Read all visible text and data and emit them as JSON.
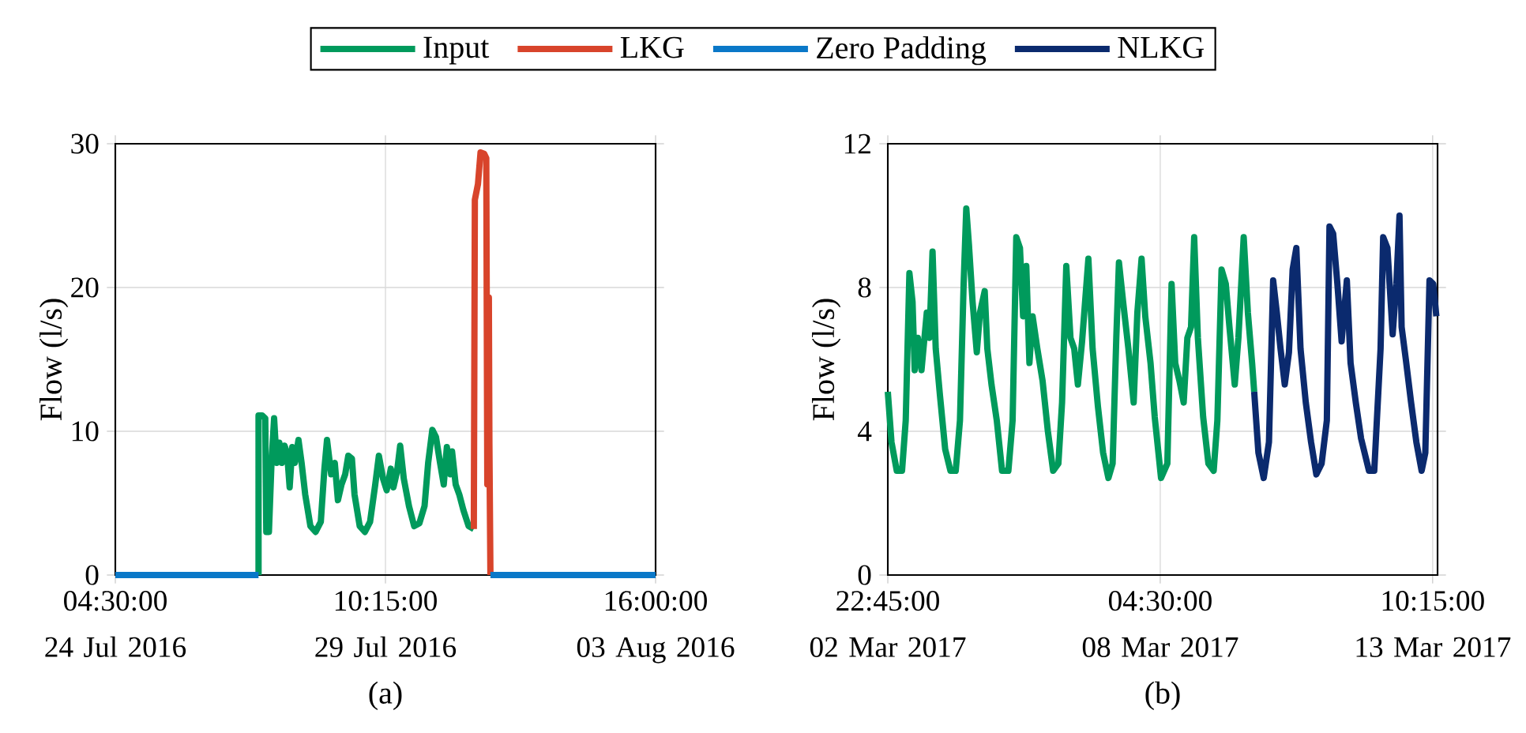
{
  "chart_data": [
    {
      "type": "line",
      "ylabel": "Flow (l/s)",
      "xlim": [
        "2016-07-24T04:30",
        "2016-08-03T16:00"
      ],
      "ylim": [
        0,
        30
      ],
      "yticks": [
        0,
        10,
        20,
        30
      ],
      "xticks": [
        {
          "value": "2016-07-24T04:30",
          "label": "04:30:00 24 Jul 2016"
        },
        {
          "value": "2016-07-29T10:15",
          "label": "10:15:00 29 Jul 2016"
        },
        {
          "value": "2016-08-03T16:00",
          "label": "16:00:00 03 Aug 2016"
        }
      ],
      "grid": true,
      "legend": "top",
      "line_style": "solid",
      "annotations": [
        "(a)"
      ],
      "series": [
        {
          "name": "Input",
          "color": "#009a5c",
          "x": [
            "2016-07-26T23:10",
            "2016-07-26T23:10",
            "2016-07-27T00:51",
            "2016-07-27T02:18",
            "2016-07-27T02:47",
            "2016-07-27T04:00",
            "2016-07-27T05:12",
            "2016-07-27T06:25",
            "2016-07-27T07:37",
            "2016-07-27T08:50",
            "2016-07-27T10:02",
            "2016-07-27T11:15",
            "2016-07-27T12:27",
            "2016-07-27T13:39",
            "2016-07-27T14:52",
            "2016-07-27T16:04",
            "2016-07-27T17:46",
            "2016-07-27T19:13",
            "2016-07-27T20:54",
            "2016-07-27T23:19",
            "2016-07-28T01:44",
            "2016-07-28T04:09",
            "2016-07-28T05:50",
            "2016-07-28T07:03",
            "2016-07-28T08:59",
            "2016-07-28T10:40",
            "2016-07-28T12:07",
            "2016-07-28T13:48",
            "2016-07-28T15:30",
            "2016-07-28T16:57",
            "2016-07-28T18:38",
            "2016-07-28T19:51",
            "2016-07-28T22:16",
            "2016-07-29T00:40",
            "2016-07-29T03:05",
            "2016-07-29T05:30",
            "2016-07-29T07:11",
            "2016-07-29T09:08",
            "2016-07-29T10:49",
            "2016-07-29T12:45",
            "2016-07-29T13:57",
            "2016-07-29T15:39",
            "2016-07-29T17:06",
            "2016-07-29T18:47",
            "2016-07-29T21:12",
            "2016-07-29T23:37",
            "2016-07-30T02:02",
            "2016-07-30T04:27",
            "2016-07-30T06:08",
            "2016-07-30T08:04",
            "2016-07-30T09:46",
            "2016-07-30T11:41",
            "2016-07-30T13:23",
            "2016-07-30T14:50",
            "2016-07-30T16:31",
            "2016-07-30T17:15",
            "2016-07-30T18:56",
            "2016-07-30T20:37",
            "2016-07-30T22:33",
            "2016-07-31T00:58",
            "2016-07-31T03:23"
          ],
          "values": [
            0,
            11.1,
            11.1,
            10.9,
            3.0,
            3.0,
            7.8,
            10.9,
            7.8,
            9.2,
            7.8,
            9.0,
            8.5,
            6.1,
            8.9,
            7.8,
            9.4,
            7.8,
            5.6,
            3.4,
            3.0,
            3.7,
            7.4,
            9.4,
            7.0,
            7.8,
            5.2,
            6.3,
            7.0,
            8.3,
            8.1,
            5.6,
            3.4,
            3.0,
            3.7,
            6.3,
            8.3,
            6.7,
            5.9,
            7.4,
            6.1,
            7.2,
            9.0,
            6.7,
            4.8,
            3.4,
            3.6,
            4.8,
            7.8,
            10.1,
            9.6,
            7.8,
            6.3,
            8.9,
            7.0,
            8.6,
            6.3,
            5.6,
            4.5,
            3.4,
            3.2
          ]
        },
        {
          "name": "LKG",
          "color": "#d8442b",
          "x": [
            "2016-07-31T03:23",
            "2016-07-31T03:52",
            "2016-07-31T05:19",
            "2016-07-31T06:31",
            "2016-07-31T08:13",
            "2016-07-31T09:11",
            "2016-07-31T09:40",
            "2016-07-31T10:23",
            "2016-07-31T10:38",
            "2016-07-31T11:07"
          ],
          "values": [
            3.2,
            26.1,
            27.2,
            29.4,
            29.3,
            29.0,
            6.3,
            19.3,
            9.2,
            0
          ]
        },
        {
          "name": "Zero Padding",
          "color": "#0a78c8",
          "x": [
            "2016-07-24T04:30",
            "2016-07-26T23:10",
            "2016-07-29T00:00",
            "2016-07-31T11:07",
            "2016-08-03T16:00"
          ],
          "values": [
            0,
            0,
            null,
            0,
            0
          ]
        }
      ]
    },
    {
      "type": "line",
      "ylabel": "Flow (l/s)",
      "xlim": [
        "2017-03-02T22:45",
        "2017-03-13T12:30"
      ],
      "ylim": [
        0,
        12
      ],
      "yticks": [
        0,
        4,
        8,
        12
      ],
      "xticks": [
        {
          "value": "2017-03-02T22:45",
          "label": "22:45:00 02 Mar 2017"
        },
        {
          "value": "2017-03-08T04:30",
          "label": "04:30:00 08 Mar 2017"
        },
        {
          "value": "2017-03-13T10:15",
          "label": "10:15:00 13 Mar 2017"
        }
      ],
      "grid": true,
      "line_style": "solid",
      "annotations": [
        "(b)"
      ],
      "series": [
        {
          "color": "#009a5c",
          "x": [
            "2017-03-02T22:45",
            "2017-03-03T00:27",
            "2017-03-03T02:53",
            "2017-03-03T05:19",
            "2017-03-03T07:01",
            "2017-03-03T08:43",
            "2017-03-03T10:10",
            "2017-03-03T11:09",
            "2017-03-03T12:36",
            "2017-03-03T14:18",
            "2017-03-03T15:31",
            "2017-03-03T16:44",
            "2017-03-03T17:57",
            "2017-03-03T19:24",
            "2017-03-03T20:52",
            "2017-03-03T22:49",
            "2017-03-04T01:14",
            "2017-03-04T03:40",
            "2017-03-04T06:06",
            "2017-03-04T08:03",
            "2017-03-04T09:45",
            "2017-03-04T10:58",
            "2017-03-04T12:11",
            "2017-03-04T13:53",
            "2017-03-04T15:49",
            "2017-03-04T17:17",
            "2017-03-04T19:28",
            "2017-03-04T20:41",
            "2017-03-04T22:37",
            "2017-03-05T01:03",
            "2017-03-05T03:29",
            "2017-03-05T06:24",
            "2017-03-05T08:21",
            "2017-03-05T10:03",
            "2017-03-05T11:45",
            "2017-03-05T13:12",
            "2017-03-05T14:40",
            "2017-03-05T16:07",
            "2017-03-05T17:35",
            "2017-03-05T19:46",
            "2017-03-05T22:12",
            "2017-03-06T00:38",
            "2017-03-06T03:03",
            "2017-03-06T05:29",
            "2017-03-06T07:11",
            "2017-03-06T09:08",
            "2017-03-06T11:04",
            "2017-03-06T12:47",
            "2017-03-06T14:29",
            "2017-03-06T16:25",
            "2017-03-06T19:20",
            "2017-03-06T21:17",
            "2017-03-06T23:43",
            "2017-03-07T02:08",
            "2017-03-07T04:34",
            "2017-03-07T06:31",
            "2017-03-07T08:13",
            "2017-03-07T09:26",
            "2017-03-07T11:22",
            "2017-03-07T13:48",
            "2017-03-07T16:14",
            "2017-03-07T17:56",
            "2017-03-07T19:53",
            "2017-03-07T21:35",
            "2017-03-08T00:01",
            "2017-03-08T01:57",
            "2017-03-08T04:52",
            "2017-03-08T07:47",
            "2017-03-08T09:44",
            "2017-03-08T11:25",
            "2017-03-08T13:22",
            "2017-03-08T15:19",
            "2017-03-08T17:01",
            "2017-03-08T18:43",
            "2017-03-08T20:10",
            "2017-03-08T21:52",
            "2017-03-09T00:18",
            "2017-03-09T02:44",
            "2017-03-09T05:10",
            "2017-03-09T06:52",
            "2017-03-09T08:48",
            "2017-03-09T10:45",
            "2017-03-09T12:27",
            "2017-03-09T14:53",
            "2017-03-09T16:35",
            "2017-03-09T19:01",
            "2017-03-09T20:57",
            "2017-03-09T22:54",
            "2017-03-09T23:52"
          ],
          "values": [
            5.1,
            3.7,
            2.9,
            2.9,
            4.3,
            8.4,
            7.6,
            5.7,
            6.6,
            5.7,
            6.5,
            7.3,
            6.6,
            9.0,
            6.3,
            5.0,
            3.5,
            2.9,
            2.9,
            4.3,
            8.1,
            10.2,
            9.2,
            7.6,
            6.2,
            7.3,
            7.9,
            6.3,
            5.3,
            4.3,
            2.9,
            2.9,
            4.3,
            9.4,
            9.1,
            7.2,
            8.6,
            5.9,
            7.2,
            6.3,
            5.4,
            4.0,
            2.9,
            3.1,
            4.8,
            8.6,
            6.6,
            6.3,
            5.3,
            6.5,
            8.8,
            6.3,
            4.7,
            3.4,
            2.7,
            3.1,
            6.6,
            8.7,
            7.6,
            6.3,
            4.8,
            7.3,
            8.8,
            7.2,
            5.9,
            4.4,
            2.7,
            3.1,
            8.1,
            5.9,
            5.4,
            4.8,
            6.6,
            6.9,
            9.4,
            6.6,
            4.4,
            3.1,
            2.9,
            4.3,
            8.5,
            8.1,
            6.9,
            5.3,
            6.6,
            9.4,
            7.3,
            5.9,
            5.1
          ]
        },
        {
          "name": "NLKG",
          "color": "#0b2a6e",
          "x": [
            "2017-03-09T23:52",
            "2017-03-10T01:49",
            "2017-03-10T04:15",
            "2017-03-10T06:41",
            "2017-03-10T08:37",
            "2017-03-10T10:19",
            "2017-03-10T12:01",
            "2017-03-10T13:58",
            "2017-03-10T15:55",
            "2017-03-10T17:37",
            "2017-03-10T19:19",
            "2017-03-10T21:15",
            "2017-03-10T23:41",
            "2017-03-11T02:07",
            "2017-03-11T04:33",
            "2017-03-11T06:59",
            "2017-03-11T09:24",
            "2017-03-11T10:37",
            "2017-03-11T12:19",
            "2017-03-11T14:16",
            "2017-03-11T16:13",
            "2017-03-11T18:38",
            "2017-03-11T20:21",
            "2017-03-11T22:46",
            "2017-03-12T01:12",
            "2017-03-12T04:51",
            "2017-03-12T07:17",
            "2017-03-12T10:12",
            "2017-03-12T11:24",
            "2017-03-12T13:21",
            "2017-03-12T15:47",
            "2017-03-12T17:29",
            "2017-03-12T18:56",
            "2017-03-12T19:55",
            "2017-03-12T21:51",
            "2017-03-13T00:17",
            "2017-03-13T02:43",
            "2017-03-13T05:09",
            "2017-03-13T06:51",
            "2017-03-13T08:47",
            "2017-03-13T10:29",
            "2017-03-13T11:57"
          ],
          "values": [
            5.1,
            3.4,
            2.7,
            3.7,
            8.2,
            7.3,
            6.3,
            5.3,
            6.2,
            8.5,
            9.1,
            6.3,
            4.8,
            3.7,
            2.8,
            3.1,
            4.3,
            9.7,
            9.5,
            8.1,
            6.5,
            8.2,
            5.9,
            4.8,
            3.8,
            2.9,
            2.9,
            6.3,
            9.4,
            9.1,
            6.7,
            8.1,
            10.0,
            6.9,
            6.0,
            4.8,
            3.7,
            2.9,
            3.4,
            8.2,
            8.1,
            7.2
          ]
        }
      ]
    }
  ]
}
